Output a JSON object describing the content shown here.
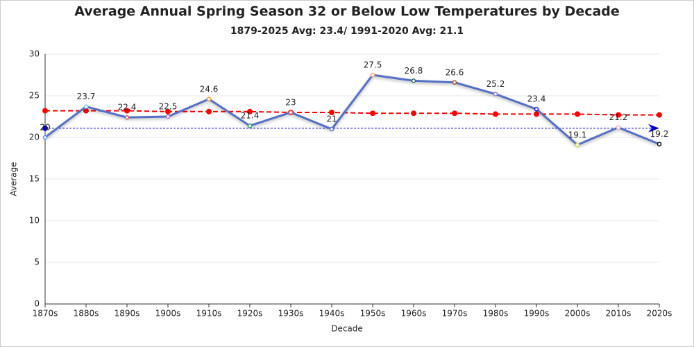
{
  "chart_data": {
    "type": "line",
    "title": "Average Annual Spring Season 32 or Below Low Temperatures by Decade",
    "subtitle": "1879-2025 Avg: 23.4/ 1991-2020 Avg: 21.1",
    "x_label": "Decade",
    "y_label": "Average",
    "categories": [
      "1870s",
      "1880s",
      "1890s",
      "1900s",
      "1910s",
      "1920s",
      "1930s",
      "1940s",
      "1950s",
      "1960s",
      "1970s",
      "1980s",
      "1990s",
      "2000s",
      "2010s",
      "2020s"
    ],
    "values": [
      20,
      23.7,
      22.4,
      22.5,
      24.6,
      21.4,
      23,
      21,
      27.5,
      26.8,
      26.6,
      25.2,
      23.4,
      19.1,
      21.2,
      19.2
    ],
    "color": "#5470c6",
    "point_colors": [
      "#5b8ff9",
      "#73c0de",
      "#d9534f",
      "#b26cc9",
      "#f0a030",
      "#3ba272",
      "#ee6666",
      "#5470c6",
      "#ff9f7f",
      "#2f6f5f",
      "#a0522d",
      "#9a7fd1",
      "#1010ff",
      "#c8d65b",
      "#f4b6c2",
      "#111111"
    ],
    "trend_values": [
      23.2,
      23.2,
      23.2,
      23.1,
      23.1,
      23.1,
      23.0,
      23.0,
      22.9,
      22.9,
      22.9,
      22.8,
      22.8,
      22.8,
      22.7,
      22.7
    ],
    "trend_color": "#ff0000",
    "reference_value": 21.1,
    "reference_color": "#0000cc",
    "ylim": [
      0,
      30
    ],
    "yticks": [
      0,
      5,
      10,
      15,
      20,
      25,
      30
    ],
    "grid": true
  }
}
